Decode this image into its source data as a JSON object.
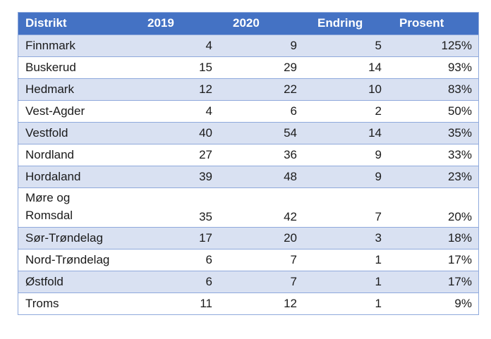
{
  "table": {
    "headers": [
      "Distrikt",
      "2019",
      "2020",
      "Endring",
      "Prosent"
    ],
    "rows": [
      [
        "Finnmark",
        "4",
        "9",
        "5",
        "125%"
      ],
      [
        "Buskerud",
        "15",
        "29",
        "14",
        "93%"
      ],
      [
        "Hedmark",
        "12",
        "22",
        "10",
        "83%"
      ],
      [
        "Vest-Agder",
        "4",
        "6",
        "2",
        "50%"
      ],
      [
        "Vestfold",
        "40",
        "54",
        "14",
        "35%"
      ],
      [
        "Nordland",
        "27",
        "36",
        "9",
        "33%"
      ],
      [
        "Hordaland",
        "39",
        "48",
        "9",
        "23%"
      ],
      [
        "Møre og Romsdal",
        "35",
        "42",
        "7",
        "20%"
      ],
      [
        "Sør-Trøndelag",
        "17",
        "20",
        "3",
        "18%"
      ],
      [
        "Nord-Trøndelag",
        "6",
        "7",
        "1",
        "17%"
      ],
      [
        "Østfold",
        "6",
        "7",
        "1",
        "17%"
      ],
      [
        "Troms",
        "11",
        "12",
        "1",
        "9%"
      ]
    ]
  },
  "colors": {
    "header_bg": "#4472c4",
    "header_text": "#ffffff",
    "band": "#d9e1f2",
    "border": "#8fa9dc"
  }
}
